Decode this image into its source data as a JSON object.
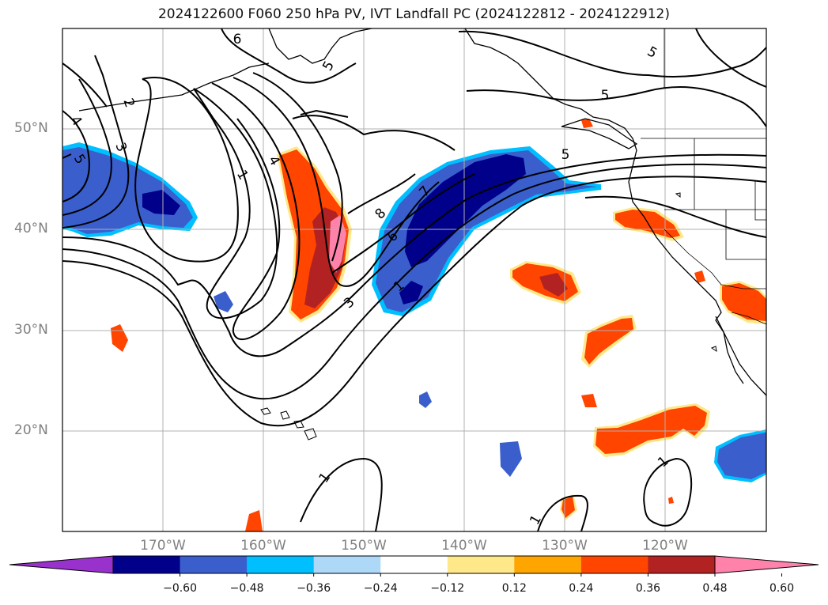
{
  "title": "2024122600 F060 250 hPa PV, IVT Landfall PC (2024122812 - 2024122912)",
  "map": {
    "projection": "PlateCarree",
    "lon_range": [
      -180,
      -110
    ],
    "lat_range": [
      10,
      60
    ],
    "lat_labels": [
      "20°N",
      "30°N",
      "40°N",
      "50°N"
    ],
    "lon_labels": [
      "170°W",
      "160°W",
      "150°W",
      "140°W",
      "130°W",
      "120°W"
    ],
    "gridlines": true,
    "contour_labels": [
      "6",
      "5",
      "2",
      "4",
      "3",
      "5",
      "1",
      "4",
      "8",
      "6",
      "7",
      "3",
      "1",
      "5",
      "5",
      "5",
      "1",
      "1",
      "1"
    ]
  },
  "colorbar": {
    "orientation": "horizontal",
    "extend": "both",
    "colors": [
      "#9932cc",
      "#00008b",
      "#3a5fcd",
      "#00bfff",
      "#add8f8",
      "#ffffff",
      "#ffe88a",
      "#ffa500",
      "#ff4500",
      "#b22222",
      "#ff82ab"
    ],
    "tick_labels": [
      "−0.60",
      "−0.48",
      "−0.36",
      "−0.24",
      "−0.12",
      "0.12",
      "0.24",
      "0.36",
      "0.48",
      "0.60"
    ]
  }
}
